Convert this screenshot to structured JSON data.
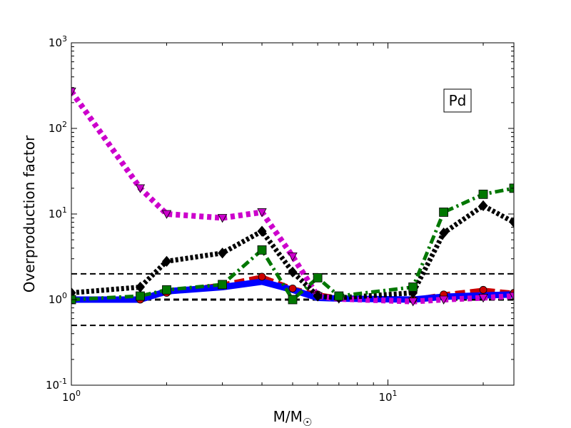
{
  "chart_data": {
    "type": "line",
    "title": "",
    "xlabel": "M/M☉",
    "ylabel": "Overproduction factor",
    "xscale": "log",
    "yscale": "log",
    "xlim": [
      1,
      25
    ],
    "ylim": [
      0.1,
      1000
    ],
    "grid": false,
    "annotation": "Pd",
    "annotation_placement": "top-right",
    "x_major_ticks": [
      {
        "value": 1,
        "base": "10",
        "exp": "0"
      },
      {
        "value": 10,
        "base": "10",
        "exp": "1"
      }
    ],
    "y_major_ticks": [
      {
        "value": 0.1,
        "base": "10",
        "exp": "-1"
      },
      {
        "value": 1,
        "base": "10",
        "exp": "0"
      },
      {
        "value": 10,
        "base": "10",
        "exp": "1"
      },
      {
        "value": 100,
        "base": "10",
        "exp": "2"
      },
      {
        "value": 1000,
        "base": "10",
        "exp": "3"
      }
    ],
    "reference_lines": [
      {
        "y": 2.0,
        "color": "#000000",
        "style": "dashed"
      },
      {
        "y": 1.0,
        "color": "#000000",
        "style": "dashed"
      },
      {
        "y": 0.5,
        "color": "#000000",
        "style": "dashed"
      }
    ],
    "series": [
      {
        "color": "#cc0000",
        "style": "dashed",
        "marker": "circle",
        "x": [
          1,
          1.65,
          2,
          3,
          4,
          5,
          6,
          7,
          12,
          15,
          20,
          25
        ],
        "y": [
          1.0,
          1.0,
          1.2,
          1.5,
          1.85,
          1.35,
          1.15,
          1.05,
          1.0,
          1.15,
          1.3,
          1.2
        ]
      },
      {
        "color": "#0000ff",
        "style": "solid",
        "marker": "none",
        "x": [
          1,
          1.65,
          2,
          3,
          4,
          5,
          6,
          7,
          12,
          15,
          20,
          25
        ],
        "y": [
          1.0,
          1.0,
          1.25,
          1.4,
          1.62,
          1.3,
          1.05,
          1.03,
          1.0,
          1.08,
          1.12,
          1.15
        ]
      },
      {
        "color": "#cc00cc",
        "style": "dotted",
        "marker": "triangle-down",
        "x": [
          1,
          1.65,
          2,
          3,
          4,
          5,
          6,
          7,
          12,
          15,
          20,
          25
        ],
        "y": [
          270,
          20,
          10,
          9,
          10.5,
          3.2,
          1.1,
          1.02,
          0.95,
          1.0,
          1.05,
          1.1
        ]
      },
      {
        "color": "#000000",
        "style": "dotted",
        "marker": "diamond",
        "x": [
          1,
          1.65,
          2,
          3,
          4,
          5,
          6,
          7,
          12,
          15,
          20,
          25
        ],
        "y": [
          1.2,
          1.4,
          2.8,
          3.5,
          6.3,
          2.1,
          1.1,
          1.05,
          1.2,
          6.0,
          12.5,
          8.0
        ]
      },
      {
        "color": "#007700",
        "style": "dashdot",
        "marker": "square",
        "x": [
          1,
          1.65,
          2,
          3,
          4,
          5,
          6,
          7,
          12,
          15,
          20,
          25
        ],
        "y": [
          1.0,
          1.1,
          1.3,
          1.5,
          3.8,
          1.0,
          1.8,
          1.1,
          1.4,
          10.5,
          17,
          20
        ]
      }
    ]
  }
}
